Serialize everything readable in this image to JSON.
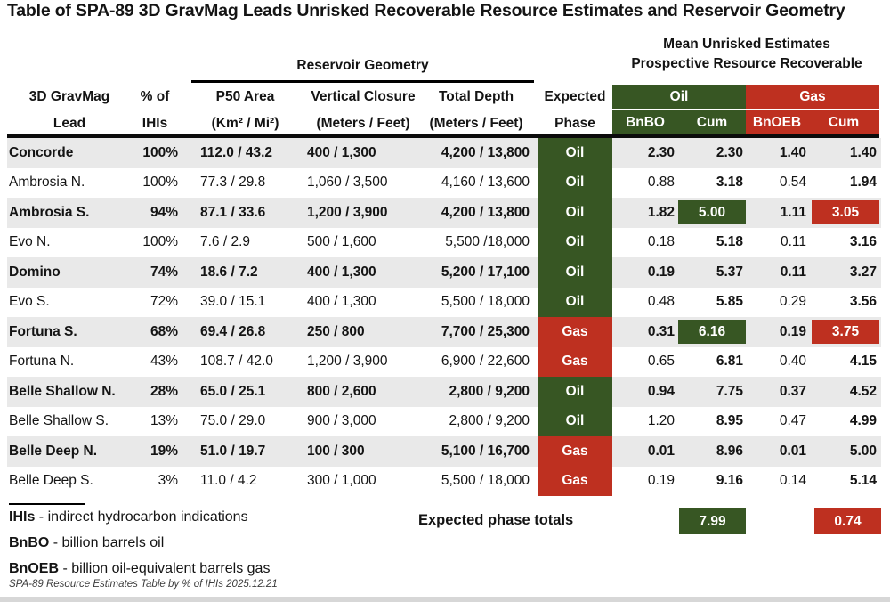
{
  "title": "Table of SPA-89 3D GravMag Leads Unrisked Recoverable Resource Estimates and Reservoir Geometry",
  "header": {
    "mean_line1": "Mean Unrisked Estimates",
    "mean_line2": "Prospective Resource Recoverable",
    "reservoir_geometry": "Reservoir Geometry",
    "col_lead_l1": "3D GravMag",
    "col_lead_l2": "Lead",
    "col_pct_l1": "% of",
    "col_pct_l2": "IHIs",
    "col_p50_l1": "P50 Area",
    "col_p50_l2": "(Km² / Mi²)",
    "col_vc_l1": "Vertical Closure",
    "col_vc_l2": "(Meters / Feet)",
    "col_td_l1": "Total Depth",
    "col_td_l2": "(Meters / Feet)",
    "col_phase_l1": "Expected",
    "col_phase_l2": "Phase",
    "oil_group": "Oil",
    "gas_group": "Gas",
    "oil_sub_bnbo": "BnBO",
    "oil_sub_cum": "Cum",
    "gas_sub_bnoeb": "BnOEB",
    "gas_sub_cum": "Cum"
  },
  "chart_data": {
    "type": "table",
    "title": "Table of SPA-89 3D GravMag Leads Unrisked Recoverable Resource Estimates and Reservoir Geometry",
    "columns": [
      "3D GravMag Lead",
      "% of IHIs",
      "P50 Area (Km² / Mi²)",
      "Vertical Closure (Meters / Feet)",
      "Total Depth (Meters / Feet)",
      "Expected Phase",
      "Oil BnBO",
      "Oil Cum",
      "Gas BnOEB",
      "Gas Cum"
    ],
    "rows": [
      {
        "lead": "Concorde",
        "pct_of_ihis": "100%",
        "p50_area": "112.0 / 43.2",
        "vertical_closure": "400 / 1,300",
        "total_depth": "4,200 / 13,800",
        "phase": "Oil",
        "bnbo": "2.30",
        "cum_oil": "2.30",
        "bnoeb": "1.40",
        "cum_gas": "1.40"
      },
      {
        "lead": "Ambrosia N.",
        "pct_of_ihis": "100%",
        "p50_area": "77.3 / 29.8",
        "vertical_closure": "1,060 / 3,500",
        "total_depth": "4,160 / 13,600",
        "phase": "Oil",
        "bnbo": "0.88",
        "cum_oil": "3.18",
        "bnoeb": "0.54",
        "cum_gas": "1.94"
      },
      {
        "lead": "Ambrosia S.",
        "pct_of_ihis": "94%",
        "p50_area": "87.1 / 33.6",
        "vertical_closure": "1,200 / 3,900",
        "total_depth": "4,200 / 13,800",
        "phase": "Oil",
        "bnbo": "1.82",
        "cum_oil": "5.00",
        "cum_oil_box": "green",
        "bnoeb": "1.11",
        "cum_gas": "3.05",
        "cum_gas_box": "red"
      },
      {
        "lead": "Evo N.",
        "pct_of_ihis": "100%",
        "p50_area": "7.6 / 2.9",
        "vertical_closure": "500 / 1,600",
        "total_depth": "5,500 /18,000",
        "phase": "Oil",
        "bnbo": "0.18",
        "cum_oil": "5.18",
        "bnoeb": "0.11",
        "cum_gas": "3.16"
      },
      {
        "lead": "Domino",
        "pct_of_ihis": "74%",
        "p50_area": "18.6 / 7.2",
        "vertical_closure": "400 / 1,300",
        "total_depth": "5,200 / 17,100",
        "phase": "Oil",
        "bnbo": "0.19",
        "cum_oil": "5.37",
        "bnoeb": "0.11",
        "cum_gas": "3.27"
      },
      {
        "lead": "Evo S.",
        "pct_of_ihis": "72%",
        "p50_area": "39.0 / 15.1",
        "vertical_closure": "400 / 1,300",
        "total_depth": "5,500 / 18,000",
        "phase": "Oil",
        "bnbo": "0.48",
        "cum_oil": "5.85",
        "bnoeb": "0.29",
        "cum_gas": "3.56"
      },
      {
        "lead": "Fortuna S.",
        "pct_of_ihis": "68%",
        "p50_area": "69.4 / 26.8",
        "vertical_closure": "250 / 800",
        "total_depth": "7,700 / 25,300",
        "phase": "Gas",
        "bnbo": "0.31",
        "cum_oil": "6.16",
        "cum_oil_box": "green",
        "bnoeb": "0.19",
        "cum_gas": "3.75",
        "cum_gas_box": "red"
      },
      {
        "lead": "Fortuna N.",
        "pct_of_ihis": "43%",
        "p50_area": "108.7 / 42.0",
        "vertical_closure": "1,200 / 3,900",
        "total_depth": "6,900 / 22,600",
        "phase": "Gas",
        "bnbo": "0.65",
        "cum_oil": "6.81",
        "bnoeb": "0.40",
        "cum_gas": "4.15"
      },
      {
        "lead": "Belle Shallow N.",
        "pct_of_ihis": "28%",
        "p50_area": "65.0 / 25.1",
        "vertical_closure": "800 / 2,600",
        "total_depth": "2,800 / 9,200",
        "phase": "Oil",
        "bnbo": "0.94",
        "cum_oil": "7.75",
        "bnoeb": "0.37",
        "cum_gas": "4.52"
      },
      {
        "lead": "Belle Shallow S.",
        "pct_of_ihis": "13%",
        "p50_area": "75.0 / 29.0",
        "vertical_closure": "900 / 3,000",
        "total_depth": "2,800 / 9,200",
        "phase": "Oil",
        "bnbo": "1.20",
        "cum_oil": "8.95",
        "bnoeb": "0.47",
        "cum_gas": "4.99"
      },
      {
        "lead": "Belle Deep N.",
        "pct_of_ihis": "19%",
        "p50_area": "51.0 / 19.7",
        "vertical_closure": "100 / 300",
        "total_depth": "5,100 / 16,700",
        "phase": "Gas",
        "bnbo": "0.01",
        "cum_oil": "8.96",
        "bnoeb": "0.01",
        "cum_gas": "5.00"
      },
      {
        "lead": "Belle Deep S.",
        "pct_of_ihis": "3%",
        "p50_area": "11.0 / 4.2",
        "vertical_closure": "300 / 1,000",
        "total_depth": "5,500 / 18,000",
        "phase": "Gas",
        "bnbo": "0.19",
        "cum_oil": "9.16",
        "bnoeb": "0.14",
        "cum_gas": "5.14"
      }
    ],
    "totals": {
      "label": "Expected phase totals",
      "oil_cum": "7.99",
      "gas_cum": "0.74"
    }
  },
  "footer": {
    "defs": [
      {
        "term": "IHIs",
        "desc": " - indirect hydrocarbon indications"
      },
      {
        "term": "BnBO",
        "desc": " - billion barrels oil"
      },
      {
        "term": "BnOEB",
        "desc": " - billion oil-equivalent barrels gas"
      }
    ],
    "note": "SPA-89 Resource Estimates Table by % of IHIs 2025.12.21"
  },
  "colors": {
    "oil_green": "#375623",
    "gas_red": "#be3020",
    "row_shade": "#e9e9e9"
  }
}
